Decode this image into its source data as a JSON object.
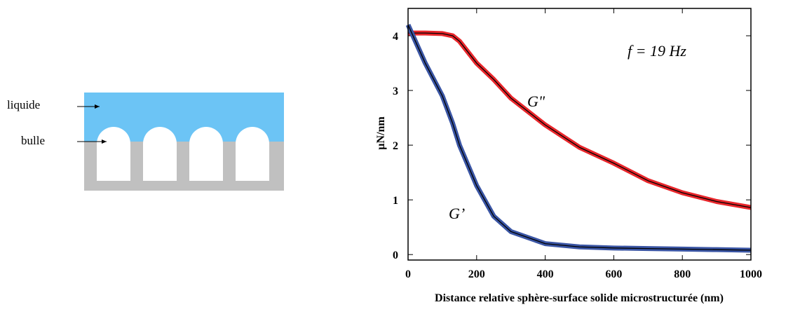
{
  "diagram": {
    "labels": [
      "liquide",
      "bulle"
    ]
  },
  "chart_data": {
    "type": "line",
    "xlabel": "Distance relative sphère-surface solide microstructurée (nm)",
    "ylabel": "µN/nm",
    "annotation": "f = 19 Hz",
    "x": [
      0,
      50,
      100,
      130,
      150,
      200,
      250,
      300,
      400,
      500,
      600,
      700,
      800,
      900,
      1000
    ],
    "series": [
      {
        "name": "G\"",
        "color": "#e8262b",
        "values": [
          4.05,
          4.05,
          4.04,
          4.0,
          3.9,
          3.5,
          3.2,
          2.86,
          2.37,
          1.96,
          1.67,
          1.35,
          1.13,
          0.97,
          0.86
        ]
      },
      {
        "name": "G’",
        "color": "#3a55a4",
        "values": [
          4.2,
          3.5,
          2.9,
          2.4,
          2.0,
          1.26,
          0.7,
          0.42,
          0.2,
          0.14,
          0.12,
          0.11,
          0.1,
          0.09,
          0.08
        ]
      }
    ],
    "xlim": [
      0,
      1000
    ],
    "xticks": [
      0,
      200,
      400,
      600,
      800,
      1000
    ],
    "ylim": [
      -0.1,
      4.5
    ],
    "yticks": [
      0,
      1,
      2,
      3,
      4
    ]
  }
}
